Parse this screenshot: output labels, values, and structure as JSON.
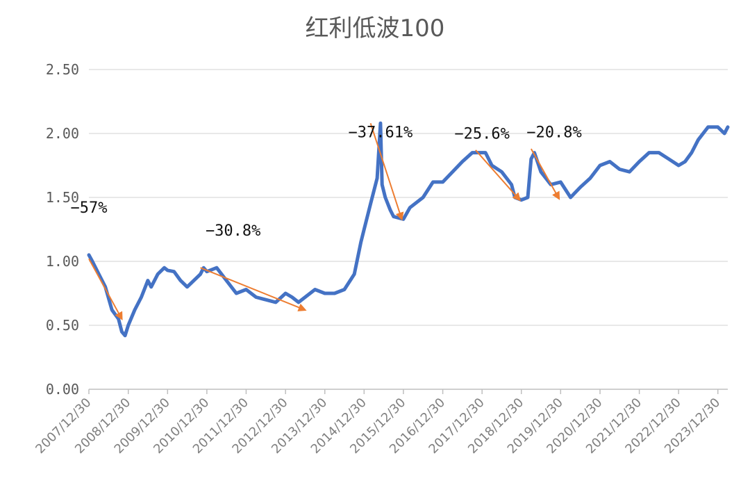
{
  "chart_data": {
    "type": "line",
    "title": "红利低波100",
    "xlabel": "",
    "ylabel": "",
    "ylim": [
      0,
      2.5
    ],
    "yticks": [
      "0.00",
      "0.50",
      "1.00",
      "1.50",
      "2.00",
      "2.50"
    ],
    "xticks": [
      "2007/12/30",
      "2008/12/30",
      "2009/12/30",
      "2010/12/30",
      "2011/12/30",
      "2012/12/30",
      "2013/12/30",
      "2014/12/30",
      "2015/12/30",
      "2016/12/30",
      "2017/12/30",
      "2018/12/30",
      "2019/12/30",
      "2020/12/30",
      "2021/12/30",
      "2022/12/30",
      "2023/12/30"
    ],
    "grid": true,
    "legend": "none",
    "colors": {
      "series": "#4472c4",
      "arrows": "#ed7d31",
      "grid": "#d9d9d9",
      "text": "#595959"
    },
    "series": [
      {
        "x": [
          "2007-12-30",
          "2008-01-31",
          "2008-03-31",
          "2008-05-31",
          "2008-07-31",
          "2008-09-30",
          "2008-10-31",
          "2008-11-30",
          "2008-12-30",
          "2009-02-28",
          "2009-04-30",
          "2009-06-30",
          "2009-07-31",
          "2009-09-30",
          "2009-11-30",
          "2009-12-30",
          "2010-02-28",
          "2010-04-30",
          "2010-06-30",
          "2010-08-31",
          "2010-10-31",
          "2010-11-30",
          "2010-12-30",
          "2011-03-31",
          "2011-06-30",
          "2011-09-30",
          "2011-12-30",
          "2012-03-31",
          "2012-06-30",
          "2012-09-30",
          "2012-12-30",
          "2013-02-28",
          "2013-04-30",
          "2013-06-30",
          "2013-09-30",
          "2013-12-30",
          "2014-03-31",
          "2014-06-30",
          "2014-09-30",
          "2014-11-30",
          "2014-12-30",
          "2015-02-28",
          "2015-04-30",
          "2015-05-31",
          "2015-06-15",
          "2015-07-15",
          "2015-08-31",
          "2015-09-30",
          "2015-12-30",
          "2016-02-29",
          "2016-06-30",
          "2016-09-30",
          "2016-12-30",
          "2017-06-30",
          "2017-09-30",
          "2017-12-30",
          "2018-01-31",
          "2018-03-31",
          "2018-06-30",
          "2018-09-30",
          "2018-10-31",
          "2018-12-30",
          "2019-02-28",
          "2019-03-31",
          "2019-04-30",
          "2019-06-30",
          "2019-09-30",
          "2019-12-30",
          "2020-03-31",
          "2020-06-30",
          "2020-09-30",
          "2020-12-30",
          "2021-03-31",
          "2021-06-30",
          "2021-09-30",
          "2021-12-30",
          "2022-03-31",
          "2022-06-30",
          "2022-09-30",
          "2022-12-30",
          "2023-02-28",
          "2023-04-30",
          "2023-06-30",
          "2023-09-30",
          "2023-12-30",
          "2024-02-29",
          "2024-03-31"
        ],
        "y": [
          1.05,
          1.0,
          0.9,
          0.8,
          0.62,
          0.55,
          0.45,
          0.42,
          0.5,
          0.62,
          0.72,
          0.85,
          0.8,
          0.9,
          0.95,
          0.93,
          0.92,
          0.85,
          0.8,
          0.85,
          0.9,
          0.95,
          0.92,
          0.95,
          0.85,
          0.75,
          0.78,
          0.72,
          0.7,
          0.68,
          0.75,
          0.72,
          0.68,
          0.72,
          0.78,
          0.75,
          0.75,
          0.78,
          0.9,
          1.15,
          1.25,
          1.45,
          1.65,
          2.08,
          1.6,
          1.5,
          1.4,
          1.35,
          1.33,
          1.42,
          1.5,
          1.62,
          1.62,
          1.78,
          1.85,
          1.85,
          1.85,
          1.75,
          1.7,
          1.6,
          1.5,
          1.48,
          1.5,
          1.8,
          1.85,
          1.7,
          1.6,
          1.62,
          1.5,
          1.58,
          1.65,
          1.75,
          1.78,
          1.72,
          1.7,
          1.78,
          1.85,
          1.85,
          1.8,
          1.75,
          1.78,
          1.85,
          1.95,
          2.05,
          2.05,
          2.0,
          2.05
        ]
      }
    ],
    "annotations": [
      {
        "text": "−57%",
        "from": [
          "2007-12-30",
          1.02
        ],
        "to": [
          "2008-10-31",
          0.55
        ],
        "label_at": [
          "2007-12-30",
          1.38
        ]
      },
      {
        "text": "−30.8%",
        "from": [
          "2010-10-31",
          0.95
        ],
        "to": [
          "2013-06-30",
          0.62
        ],
        "label_at": [
          "2011-08-31",
          1.2
        ]
      },
      {
        "text": "−37.61%",
        "from": [
          "2015-02-28",
          2.08
        ],
        "to": [
          "2015-12-15",
          1.33
        ],
        "label_at": [
          "2015-05-31",
          1.97
        ]
      },
      {
        "text": "−25.6%",
        "from": [
          "2017-10-31",
          1.87
        ],
        "to": [
          "2018-12-15",
          1.48
        ],
        "label_at": [
          "2017-12-30",
          1.96
        ]
      },
      {
        "text": "−20.8%",
        "from": [
          "2019-03-31",
          1.88
        ],
        "to": [
          "2019-12-15",
          1.49
        ],
        "label_at": [
          "2019-10-31",
          1.97
        ]
      }
    ]
  }
}
